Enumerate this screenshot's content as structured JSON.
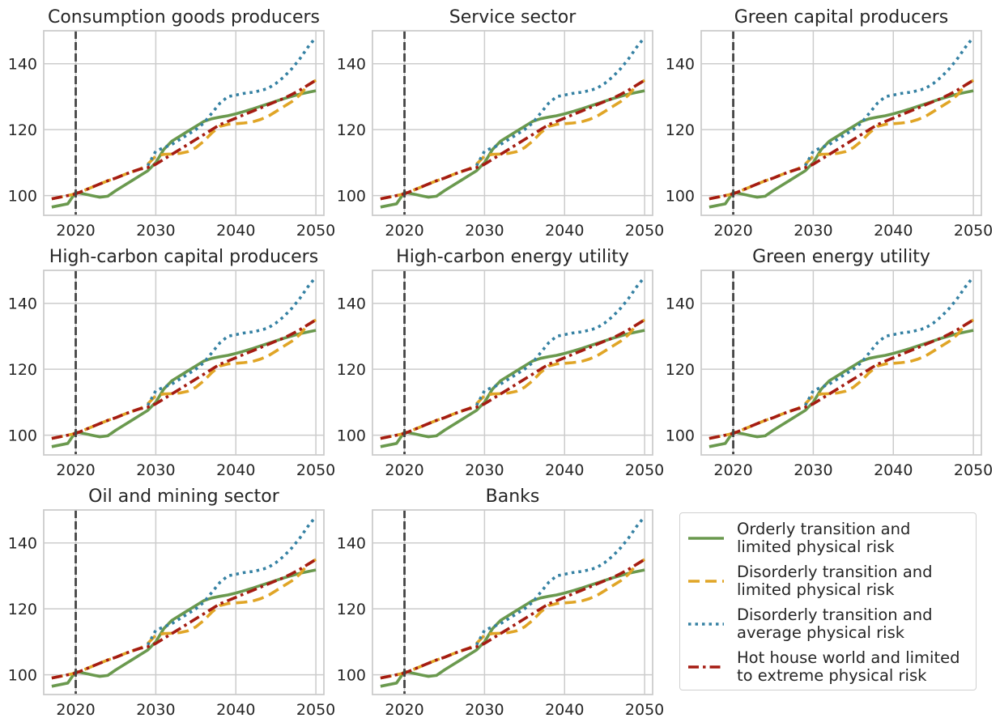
{
  "chart_data": {
    "type": "line",
    "layout": "small-multiples",
    "grid": true,
    "xlim": [
      2016,
      2051
    ],
    "ylim": [
      94,
      150
    ],
    "xticks": [
      2020,
      2030,
      2040,
      2050
    ],
    "yticks": [
      100,
      120,
      140
    ],
    "vline_x": 2020,
    "legend_position": "bottom-right",
    "panels": [
      {
        "title": "Consumption goods producers"
      },
      {
        "title": "Service sector"
      },
      {
        "title": "Green capital producers"
      },
      {
        "title": "High-carbon capital producers"
      },
      {
        "title": "High-carbon energy utility"
      },
      {
        "title": "Green energy utility"
      },
      {
        "title": "Oil and mining sector"
      },
      {
        "title": "Banks"
      }
    ],
    "series": [
      {
        "name": "Orderly transition and\nlimited physical risk",
        "color": "#6a994e",
        "style": "solid",
        "x": [
          2017,
          2018,
          2019,
          2020,
          2021,
          2022,
          2023,
          2024,
          2025,
          2026,
          2027,
          2028,
          2029,
          2030,
          2031,
          2032,
          2033,
          2034,
          2035,
          2036,
          2037,
          2038,
          2039,
          2040,
          2041,
          2042,
          2043,
          2044,
          2045,
          2046,
          2047,
          2048,
          2049,
          2050
        ],
        "values": [
          96.5,
          97,
          97.5,
          101,
          100.5,
          100,
          99.5,
          99.8,
          101.5,
          103,
          104.5,
          106,
          107.5,
          110,
          114,
          116.5,
          118,
          119.5,
          121,
          122.5,
          123.3,
          123.8,
          124.2,
          124.8,
          125.5,
          126.2,
          127,
          127.8,
          128.6,
          129.4,
          130.1,
          130.8,
          131.3,
          131.8
        ]
      },
      {
        "name": "Disorderly transition and\nlimited physical risk",
        "color": "#e0a526",
        "style": "dashed",
        "x": [
          2017,
          2018,
          2019,
          2020,
          2021,
          2022,
          2023,
          2024,
          2025,
          2026,
          2027,
          2028,
          2029,
          2030,
          2031,
          2032,
          2033,
          2034,
          2035,
          2036,
          2037,
          2038,
          2039,
          2040,
          2041,
          2042,
          2043,
          2044,
          2045,
          2046,
          2047,
          2048,
          2049,
          2050
        ],
        "values": [
          99,
          99.5,
          100,
          100.5,
          101.5,
          102.5,
          103.5,
          104.5,
          105.3,
          106.3,
          107.2,
          108,
          109.5,
          112,
          112.5,
          112.6,
          112.8,
          113.3,
          114.5,
          116.5,
          119,
          121,
          121.6,
          121.8,
          122,
          122.3,
          123,
          124,
          125.5,
          127,
          128.5,
          130.5,
          133.5,
          135
        ]
      },
      {
        "name": "Disorderly transition and\naverage physical risk",
        "color": "#3581a3",
        "style": "dotted",
        "x": [
          2029,
          2030,
          2031,
          2032,
          2033,
          2034,
          2035,
          2036,
          2037,
          2038,
          2039,
          2040,
          2041,
          2042,
          2043,
          2044,
          2045,
          2046,
          2047,
          2048,
          2049,
          2050
        ],
        "values": [
          109,
          113.5,
          114.5,
          115.5,
          117,
          118.5,
          120,
          122,
          125,
          128,
          130,
          130.5,
          131,
          131.3,
          131.8,
          132.5,
          134,
          136,
          138.5,
          141.5,
          145,
          148
        ]
      },
      {
        "name": "Hot house world and limited\nto extreme physical risk",
        "color": "#a51c12",
        "style": "dashdot",
        "x": [
          2017,
          2018,
          2019,
          2020,
          2021,
          2022,
          2023,
          2024,
          2025,
          2026,
          2027,
          2028,
          2029,
          2030,
          2031,
          2032,
          2033,
          2034,
          2035,
          2036,
          2037,
          2038,
          2039,
          2040,
          2041,
          2042,
          2043,
          2044,
          2045,
          2046,
          2047,
          2048,
          2049,
          2050
        ],
        "values": [
          99,
          99.5,
          100,
          100.5,
          101.5,
          102.5,
          103.5,
          104.5,
          105.3,
          106.3,
          107.2,
          108,
          108.5,
          109.5,
          111,
          112.5,
          114,
          115.5,
          117,
          118.5,
          120,
          121.5,
          122.5,
          123.5,
          124.5,
          125.5,
          126.5,
          127.5,
          128.5,
          129.5,
          130.7,
          132,
          133.5,
          135
        ]
      }
    ]
  }
}
